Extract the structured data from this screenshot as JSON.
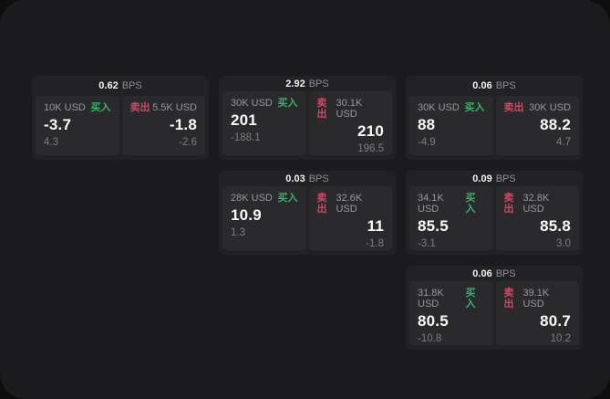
{
  "labels": {
    "bps": "BPS",
    "buy": "买入",
    "sell": "卖出"
  },
  "colors": {
    "surface": "#1b1b1d",
    "card": "#222224",
    "panel": "#2a2a2c",
    "buy_green": "#37b26c",
    "sell_red": "#cd4a63"
  },
  "cards": [
    {
      "bps": "0.62",
      "buy": {
        "amount": "10K USD",
        "value": "-3.7",
        "sub": "4.3"
      },
      "sell": {
        "amount": "5.5K USD",
        "value": "-1.8",
        "sub": "-2.6"
      }
    },
    {
      "bps": "2.92",
      "buy": {
        "amount": "30K USD",
        "value": "201",
        "sub": "-188.1"
      },
      "sell": {
        "amount": "30.1K USD",
        "value": "210",
        "sub": "196.5"
      }
    },
    {
      "bps": "0.06",
      "buy": {
        "amount": "30K USD",
        "value": "88",
        "sub": "-4.9"
      },
      "sell": {
        "amount": "30K USD",
        "value": "88.2",
        "sub": "4.7"
      }
    },
    {
      "bps": "0.03",
      "buy": {
        "amount": "28K USD",
        "value": "10.9",
        "sub": "1.3"
      },
      "sell": {
        "amount": "32.6K USD",
        "value": "11",
        "sub": "-1.8"
      }
    },
    {
      "bps": "0.09",
      "buy": {
        "amount": "34.1K USD",
        "value": "85.5",
        "sub": "-3.1"
      },
      "sell": {
        "amount": "32.8K USD",
        "value": "85.8",
        "sub": "3.0"
      }
    },
    {
      "bps": "0.06",
      "buy": {
        "amount": "31.8K USD",
        "value": "80.5",
        "sub": "-10.8"
      },
      "sell": {
        "amount": "39.1K USD",
        "value": "80.7",
        "sub": "10.2"
      }
    }
  ]
}
